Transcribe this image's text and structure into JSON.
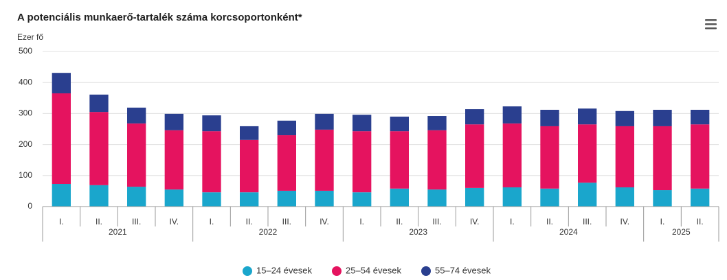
{
  "chart_data": {
    "type": "stacked-bar",
    "title": "A potenciális munkaerő-tartalék száma korcsoportonként*",
    "y_label": "Ezer fő",
    "groups": [
      {
        "name": "2021",
        "categories": [
          "I.",
          "II.",
          "III.",
          "IV."
        ]
      },
      {
        "name": "2022",
        "categories": [
          "I.",
          "II.",
          "III.",
          "IV."
        ]
      },
      {
        "name": "2023",
        "categories": [
          "I.",
          "II.",
          "III.",
          "IV."
        ]
      },
      {
        "name": "2024",
        "categories": [
          "I.",
          "II.",
          "III.",
          "IV."
        ]
      },
      {
        "name": "2025",
        "categories": [
          "I.",
          "II."
        ]
      }
    ],
    "series": [
      {
        "name": "15–24 évesek",
        "color": "#1aa6cc",
        "values": [
          73,
          69,
          64,
          55,
          46,
          46,
          51,
          51,
          46,
          58,
          55,
          60,
          62,
          58,
          77,
          62,
          53,
          58
        ]
      },
      {
        "name": "25–54 évesek",
        "color": "#e5135f",
        "values": [
          292,
          236,
          204,
          191,
          197,
          169,
          179,
          197,
          197,
          185,
          191,
          205,
          206,
          201,
          188,
          197,
          206,
          207
        ]
      },
      {
        "name": "55–74 évesek",
        "color": "#2a3f8f",
        "values": [
          66,
          56,
          51,
          53,
          51,
          44,
          47,
          51,
          53,
          47,
          46,
          49,
          55,
          53,
          51,
          49,
          53,
          47
        ]
      }
    ],
    "ylim": [
      0,
      500
    ],
    "yticks": [
      0,
      100,
      200,
      300,
      400,
      500
    ],
    "grid": true
  }
}
